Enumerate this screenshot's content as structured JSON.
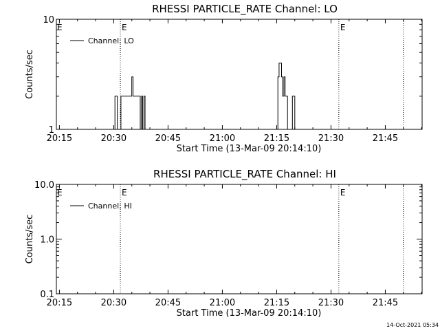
{
  "chart_data": [
    {
      "type": "line",
      "title": "RHESSI PARTICLE_RATE Channel: LO",
      "xlabel": "Start Time (13-Mar-09 20:14:10)",
      "ylabel": "Counts/sec",
      "yscale": "log",
      "ylim": [
        1,
        10
      ],
      "ytick_labels": [
        "1",
        "10"
      ],
      "xlim": [
        "20:14:10",
        "21:55:10"
      ],
      "xtick_labels": [
        "20:15",
        "20:30",
        "20:45",
        "21:00",
        "21:15",
        "21:30",
        "21:45"
      ],
      "legend": {
        "label": "Channel: LO",
        "placement": "top-left"
      },
      "event_markers": [
        {
          "time": "20:31:50",
          "label": "E",
          "style": "dotted"
        },
        {
          "time": "21:32:10",
          "label": "E",
          "style": "dotted"
        },
        {
          "time": "21:50:00",
          "label": "",
          "style": "dotted"
        }
      ],
      "series": [
        {
          "x": [
            "20:14:10",
            "20:30:00",
            "20:30:20",
            "20:30:40",
            "20:31:00",
            "20:31:20",
            "20:31:40",
            "20:32:00",
            "20:32:20",
            "20:33:00",
            "20:34:00",
            "20:34:40",
            "20:35:00",
            "20:35:20",
            "20:35:40",
            "20:36:00",
            "20:36:20",
            "20:37:00",
            "20:37:20",
            "20:37:40",
            "20:38:00",
            "20:38:20",
            "20:38:40",
            "20:39:20",
            "21:15:00",
            "21:15:20",
            "21:15:40",
            "21:16:00",
            "21:16:20",
            "21:16:40",
            "21:17:00",
            "21:17:20",
            "21:17:40",
            "21:18:00",
            "21:18:20",
            "21:18:40",
            "21:19:00",
            "21:19:20",
            "21:20:00",
            "21:20:20",
            "21:20:40",
            "21:55:10"
          ],
          "y": [
            1,
            1,
            2,
            2,
            1,
            1,
            1,
            2,
            2,
            2,
            2,
            2,
            3,
            2,
            2,
            2,
            2,
            2,
            1,
            2,
            1,
            2,
            1,
            1,
            1,
            3,
            4,
            4,
            3,
            2,
            3,
            2,
            2,
            1,
            1,
            1,
            1,
            2,
            1,
            1,
            1,
            1
          ]
        }
      ]
    },
    {
      "type": "line",
      "title": "RHESSI PARTICLE_RATE Channel: HI",
      "xlabel": "Start Time (13-Mar-09 20:14:10)",
      "ylabel": "Counts/sec",
      "yscale": "log",
      "ylim": [
        0.1,
        10
      ],
      "ytick_labels": [
        "0.1",
        "1.0",
        "10.0"
      ],
      "xlim": [
        "20:14:10",
        "21:55:10"
      ],
      "xtick_labels": [
        "20:15",
        "20:30",
        "20:45",
        "21:00",
        "21:15",
        "21:30",
        "21:45"
      ],
      "legend": {
        "label": "Channel: HI",
        "placement": "top-left"
      },
      "event_markers": [
        {
          "time": "20:31:50",
          "label": "E",
          "style": "dotted"
        },
        {
          "time": "21:32:10",
          "label": "E",
          "style": "dotted"
        },
        {
          "time": "21:50:00",
          "label": "",
          "style": "dotted"
        }
      ],
      "series": [
        {
          "x": [],
          "y": []
        }
      ]
    }
  ],
  "footer": {
    "timestamp": "14-Oct-2021 05:34"
  }
}
